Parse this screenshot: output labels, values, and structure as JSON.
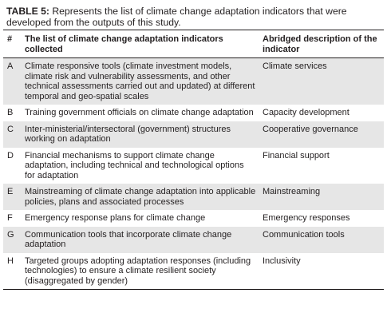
{
  "caption": {
    "label": "TABLE 5:",
    "text": "Represents the list of climate change adaptation indicators that were developed from the outputs of this study."
  },
  "table": {
    "header": [
      "#",
      "The list of climate change adaptation indicators collected",
      "Abridged description of the indicator"
    ],
    "rows": [
      [
        "A",
        "Climate responsive tools (climate investment models, climate risk and vulnerability assessments, and other technical assessments carried out and updated) at different temporal and geo-spatial scales",
        "Climate services"
      ],
      [
        "B",
        "Training government officials on climate change adaptation",
        "Capacity development"
      ],
      [
        "C",
        "Inter-ministerial/intersectoral (government) structures working on adaptation",
        "Cooperative governance"
      ],
      [
        "D",
        "Financial mechanisms to support climate change adaptation, including technical and technological options for adaptation",
        "Financial support"
      ],
      [
        "E",
        "Mainstreaming of climate change adaptation into applicable policies, plans and associated processes",
        "Mainstreaming"
      ],
      [
        "F",
        "Emergency response plans for climate change",
        "Emergency responses"
      ],
      [
        "G",
        "Communication tools that incorporate climate change adaptation",
        "Communication tools"
      ],
      [
        "H",
        "Targeted groups adopting adaptation responses (including technologies) to ensure a climate resilient society (disaggregated by gender)",
        "Inclusivity"
      ]
    ]
  }
}
